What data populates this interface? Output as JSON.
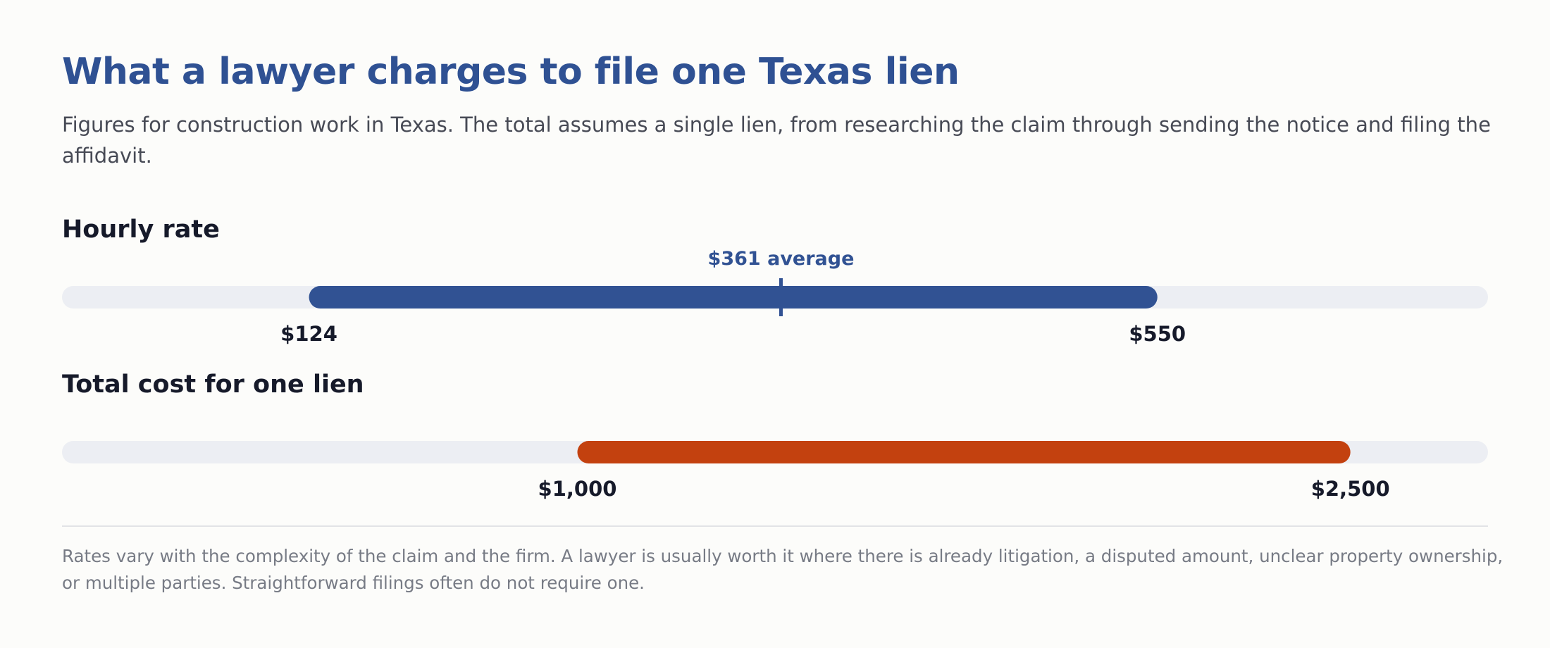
{
  "title": "What a lawyer charges to file one Texas lien",
  "subtitle": "Figures for construction work in Texas. The total assumes a single lien, from researching the claim through sending the notice and filing the affidavit.",
  "footnote": "Rates vary with the complexity of the claim and the firm. A lawyer is usually worth it where there is already litigation, a disputed amount, unclear property ownership, or multiple parties. Straightforward filings often do not require one.",
  "colors": {
    "title": "#2f5193",
    "track": "#eceef3",
    "hourly_range": "#315293",
    "total_range": "#c3410f",
    "label_text": "#161a2a"
  },
  "chart_data": [
    {
      "type": "range",
      "title": "Hourly rate",
      "axis_range": [
        0,
        716
      ],
      "low": 124,
      "high": 550,
      "marker": 361,
      "labels": {
        "low": "$124",
        "high": "$550",
        "marker": "$361 average"
      }
    },
    {
      "type": "range",
      "title": "Total cost for one lien",
      "axis_range": [
        0,
        2767
      ],
      "low": 1000,
      "high": 2500,
      "labels": {
        "low": "$1,000",
        "high": "$2,500"
      }
    }
  ]
}
